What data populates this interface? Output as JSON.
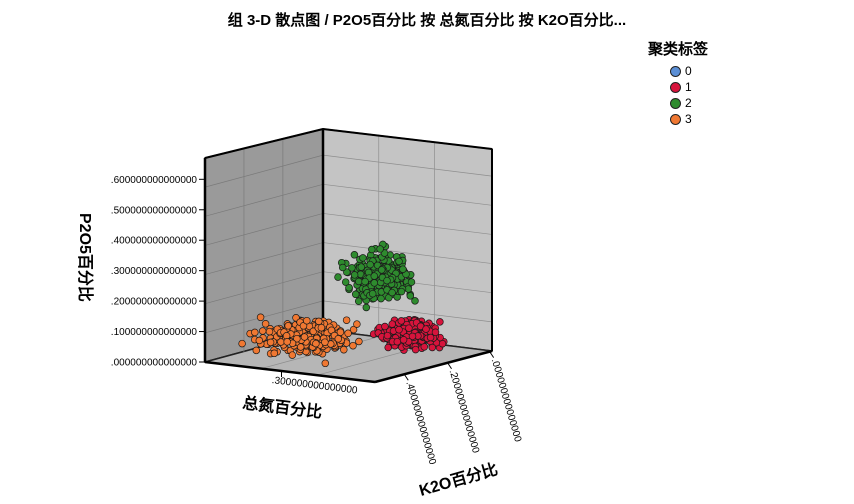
{
  "chart_data": {
    "type": "scatter",
    "dimensions": "3d",
    "title": "组 3-D 散点图 /  P2O5百分比 按 总氮百分比 按 K2O百分比...",
    "xlabel": "总氮百分比",
    "ylabel": "P2O5百分比",
    "zlabel": "K2O百分比",
    "y_ticks": [
      ".000000000000000",
      ".100000000000000",
      ".200000000000000",
      ".300000000000000",
      ".400000000000000",
      ".500000000000000",
      ".600000000000000"
    ],
    "x_ticks": [
      ".300000000000000"
    ],
    "z_ticks": [
      ".400000000000000",
      ".200000000000000",
      ".000000000000000"
    ],
    "ylim": [
      0,
      0.67
    ],
    "legend": {
      "title": "聚类标签",
      "placement": "top-right"
    },
    "series": [
      {
        "name": "0",
        "color": "#5b8fd6",
        "points": []
      },
      {
        "name": "1",
        "color": "#d7143c"
      },
      {
        "name": "2",
        "color": "#2e8b2e"
      },
      {
        "name": "3",
        "color": "#f07832"
      }
    ],
    "grid": true
  }
}
